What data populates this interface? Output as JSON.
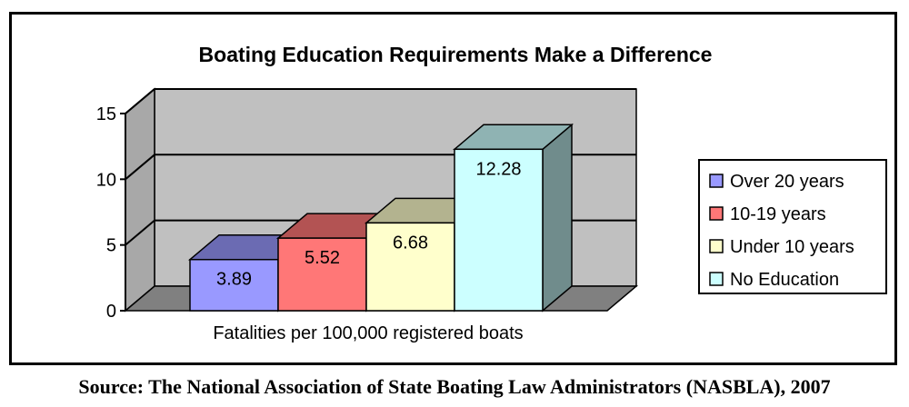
{
  "chart_data": {
    "type": "bar",
    "title": "Boating Education Requirements  Make a Difference",
    "xlabel": "Fatalities per 100,000 registered boats",
    "ylabel": "",
    "ylim": [
      0,
      15
    ],
    "yticks": [
      0,
      5,
      10,
      15
    ],
    "grid": true,
    "legend_position": "right",
    "series": [
      {
        "name": "Over 20 years",
        "values": [
          3.89
        ],
        "color": "#9999ff",
        "label": "3.89"
      },
      {
        "name": "10-19 years",
        "values": [
          5.52
        ],
        "color": "#ff7777",
        "label": "5.52"
      },
      {
        "name": "Under 10 years",
        "values": [
          6.68
        ],
        "color": "#ffffcc",
        "label": "6.68"
      },
      {
        "name": "No Education",
        "values": [
          12.28
        ],
        "color": "#ccffff",
        "label": "12.28"
      }
    ],
    "wall_color": "#c0c0c0",
    "floor_color": "#808080"
  },
  "source": "Source: The National Association of State Boating Law Administrators (NASBLA), 2007"
}
